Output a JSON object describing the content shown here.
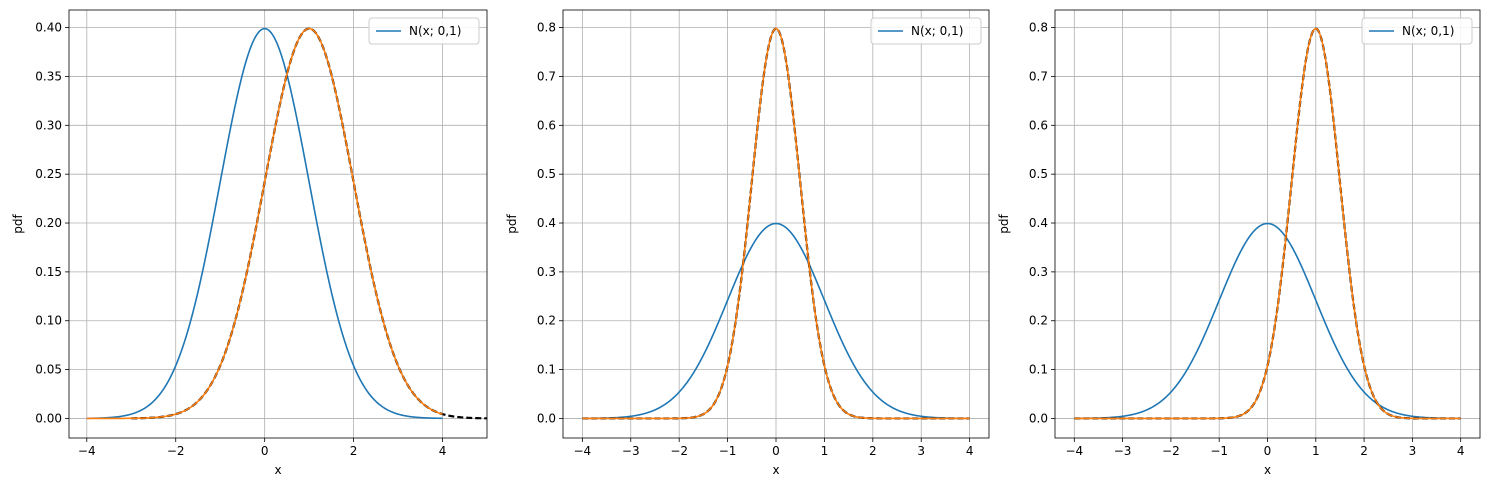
{
  "chart_data": [
    {
      "type": "line",
      "xlabel": "x",
      "ylabel": "pdf",
      "xlim": [
        -4.4,
        5.0
      ],
      "ylim": [
        -0.02,
        0.418
      ],
      "xticks": [
        -4,
        -2,
        0,
        2,
        4
      ],
      "xtick_labels": [
        "−4",
        "−2",
        "0",
        "2",
        "4"
      ],
      "yticks": [
        0.0,
        0.05,
        0.1,
        0.15,
        0.2,
        0.25,
        0.3,
        0.35,
        0.4
      ],
      "ytick_labels": [
        "0.00",
        "0.05",
        "0.10",
        "0.15",
        "0.20",
        "0.25",
        "0.30",
        "0.35",
        "0.40"
      ],
      "grid": true,
      "legend": {
        "placement": "top-right",
        "entries": [
          "N(x; 0,1)"
        ]
      },
      "series": [
        {
          "name": "N(x; 0,1)",
          "kind": "normal",
          "mu": 0,
          "sigma": 1,
          "x_range": [
            -4,
            4
          ],
          "color": "#1f77b4",
          "dash": false
        },
        {
          "kind": "normal",
          "mu": 1,
          "sigma": 1,
          "x_range": [
            -3,
            5
          ],
          "color": "#000000",
          "dash": true
        },
        {
          "kind": "normal",
          "mu": 1,
          "sigma": 1,
          "x_range": [
            -4,
            4
          ],
          "color": "#ff7f0e",
          "dash": false
        }
      ]
    },
    {
      "type": "line",
      "xlabel": "x",
      "ylabel": "pdf",
      "xlim": [
        -4.4,
        4.4
      ],
      "ylim": [
        -0.04,
        0.836
      ],
      "xticks": [
        -4,
        -3,
        -2,
        -1,
        0,
        1,
        2,
        3,
        4
      ],
      "xtick_labels": [
        "−4",
        "−3",
        "−2",
        "−1",
        "0",
        "1",
        "2",
        "3",
        "4"
      ],
      "yticks": [
        0.0,
        0.1,
        0.2,
        0.3,
        0.4,
        0.5,
        0.6,
        0.7,
        0.8
      ],
      "ytick_labels": [
        "0.0",
        "0.1",
        "0.2",
        "0.3",
        "0.4",
        "0.5",
        "0.6",
        "0.7",
        "0.8"
      ],
      "grid": true,
      "legend": {
        "placement": "top-right",
        "entries": [
          "N(x; 0,1)"
        ]
      },
      "series": [
        {
          "name": "N(x; 0,1)",
          "kind": "normal",
          "mu": 0,
          "sigma": 1,
          "x_range": [
            -4,
            4
          ],
          "color": "#1f77b4",
          "dash": false
        },
        {
          "kind": "normal",
          "mu": 0,
          "sigma": 0.5,
          "x_range": [
            -4,
            4
          ],
          "color": "#000000",
          "dash": true
        },
        {
          "kind": "normal",
          "mu": 0,
          "sigma": 0.5,
          "x_range": [
            -4,
            4
          ],
          "color": "#ff7f0e",
          "dash": false
        }
      ]
    },
    {
      "type": "line",
      "xlabel": "x",
      "ylabel": "pdf",
      "xlim": [
        -4.4,
        4.4
      ],
      "ylim": [
        -0.04,
        0.836
      ],
      "xticks": [
        -4,
        -3,
        -2,
        -1,
        0,
        1,
        2,
        3,
        4
      ],
      "xtick_labels": [
        "−4",
        "−3",
        "−2",
        "−1",
        "0",
        "1",
        "2",
        "3",
        "4"
      ],
      "yticks": [
        0.0,
        0.1,
        0.2,
        0.3,
        0.4,
        0.5,
        0.6,
        0.7,
        0.8
      ],
      "ytick_labels": [
        "0.0",
        "0.1",
        "0.2",
        "0.3",
        "0.4",
        "0.5",
        "0.6",
        "0.7",
        "0.8"
      ],
      "grid": true,
      "legend": {
        "placement": "top-right",
        "entries": [
          "N(x; 0,1)"
        ]
      },
      "series": [
        {
          "name": "N(x; 0,1)",
          "kind": "normal",
          "mu": 0,
          "sigma": 1,
          "x_range": [
            -4,
            4
          ],
          "color": "#1f77b4",
          "dash": false
        },
        {
          "kind": "normal",
          "mu": 1,
          "sigma": 0.5,
          "x_range": [
            -4,
            4
          ],
          "color": "#000000",
          "dash": true
        },
        {
          "kind": "normal",
          "mu": 1,
          "sigma": 0.5,
          "x_range": [
            -4,
            4
          ],
          "color": "#ff7f0e",
          "dash": false
        }
      ]
    }
  ]
}
